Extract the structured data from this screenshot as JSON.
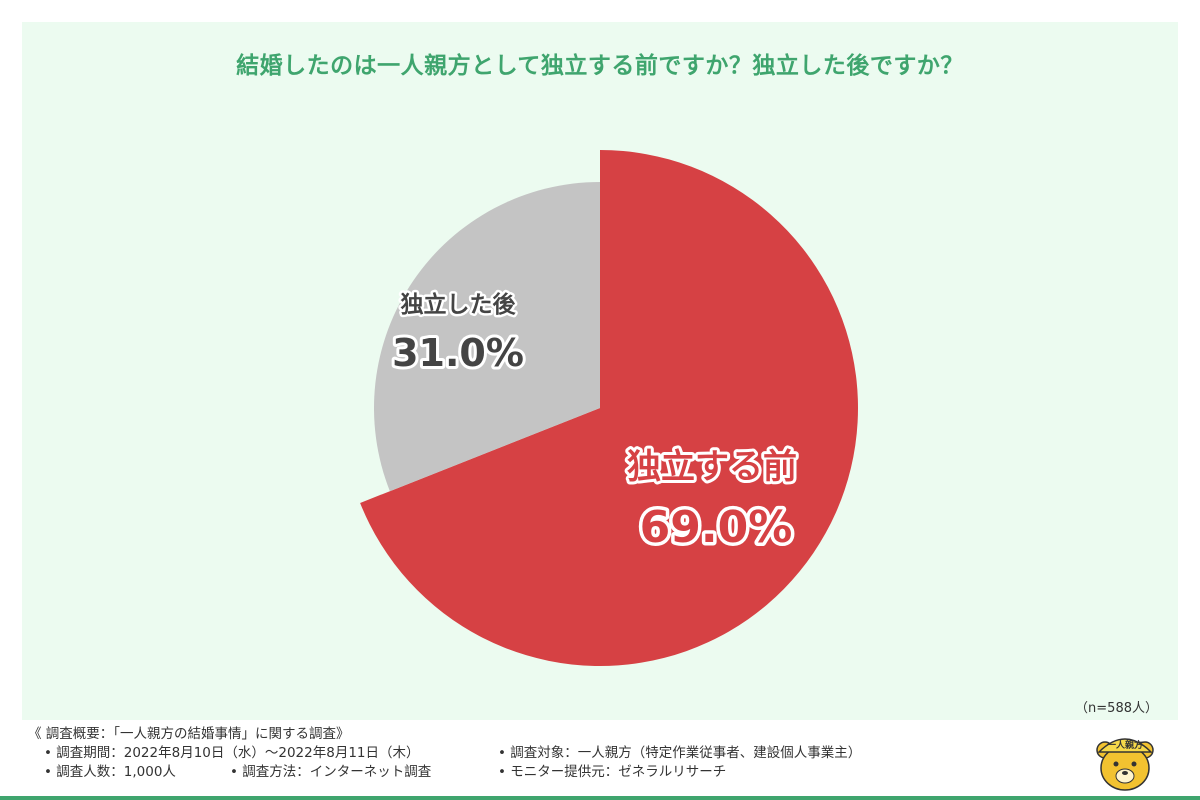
{
  "chart_data": {
    "type": "pie",
    "title": "結婚したのは一人親方として独立する前ですか？独立した後ですか？",
    "categories": [
      "独立する前",
      "独立した後"
    ],
    "values": [
      69.0,
      31.0
    ],
    "value_labels": [
      "69.0%",
      "31.0%"
    ],
    "colors": [
      "#d64144",
      "#c4c4c4"
    ],
    "start_angle": "12 o'clock, clockwise",
    "exploded": "独立する前"
  },
  "sample_size": "（n=588人）",
  "survey": {
    "overview": "《 調査概要：「一人親方の結婚事情」に関する調査》",
    "period": "• 調査期間：2022年8月10日（水）〜2022年8月11日（木）",
    "target": "• 調査対象：一人親方（特定作業従事者、建設個人事業主）",
    "count": "• 調査人数：1,000人",
    "method": "• 調査方法：インターネット調査",
    "provider": "• モニター提供元：ゼネラルリサーチ"
  },
  "mascot": {
    "icon": "bear-mascot-icon",
    "helmet_text": "一人親方"
  }
}
